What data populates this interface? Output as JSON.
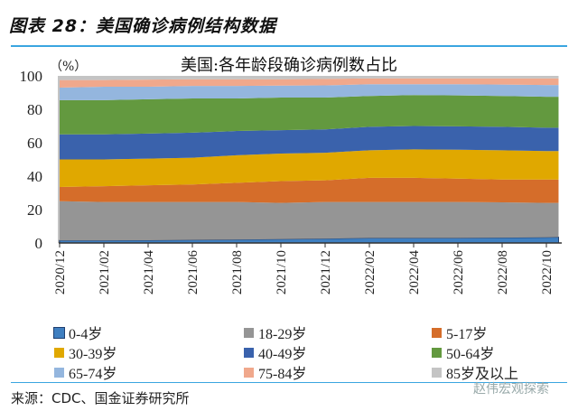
{
  "figure_title": "图表 28：美国确诊病例结构数据",
  "source": "来源：CDC、国金证券研究所",
  "watermark": "赵伟宏观探索",
  "chart_data": {
    "type": "area",
    "stacked": true,
    "title": "美国:各年龄段确诊病例数占比",
    "ylabel": "（%）",
    "ylim": [
      0,
      100
    ],
    "yticks": [
      0,
      20,
      40,
      60,
      80,
      100
    ],
    "x": [
      "2020/12",
      "2021/02",
      "2021/04",
      "2021/06",
      "2021/08",
      "2021/10",
      "2021/12",
      "2022/02",
      "2022/04",
      "2022/06",
      "2022/08",
      "2022/10",
      "2022/11"
    ],
    "xtick_labels": [
      "2020/12",
      "2021/02",
      "2021/04",
      "2021/06",
      "2021/08",
      "2021/10",
      "2021/12",
      "2022/02",
      "2022/04",
      "2022/06",
      "2022/08",
      "2022/10"
    ],
    "legend_position": "bottom",
    "series": [
      {
        "name": "0-4岁",
        "color": "#3f7fc0",
        "values": [
          1.5,
          1.5,
          1.6,
          1.8,
          2,
          2.3,
          2.6,
          3,
          3,
          3,
          3.2,
          3.4,
          3.5
        ]
      },
      {
        "name": "18-29岁",
        "color": "#959595",
        "values": [
          23.5,
          23,
          22.9,
          22.7,
          22.5,
          21.7,
          21.9,
          21.5,
          21.5,
          21.5,
          21.1,
          20.6,
          20.5
        ]
      },
      {
        "name": "5-17岁",
        "color": "#d56d2a",
        "values": [
          8.5,
          9.5,
          10,
          10.5,
          11.5,
          13,
          13,
          14.5,
          14.5,
          14,
          13.7,
          14,
          14
        ]
      },
      {
        "name": "30-39岁",
        "color": "#e0a800",
        "values": [
          16.5,
          16,
          16,
          16,
          16.5,
          16.5,
          16.5,
          16.5,
          17,
          17.3,
          17.5,
          17,
          17
        ]
      },
      {
        "name": "40-49岁",
        "color": "#3a62ac",
        "values": [
          15,
          15,
          15,
          15,
          14.5,
          14,
          14,
          14,
          14,
          14,
          14,
          14,
          14
        ]
      },
      {
        "name": "50-64岁",
        "color": "#63993f",
        "values": [
          20.5,
          20.5,
          20.5,
          20.5,
          19.5,
          19.5,
          19,
          18.5,
          18.5,
          18.5,
          18.5,
          18.5,
          18.5
        ]
      },
      {
        "name": "65-74岁",
        "color": "#94b6de",
        "values": [
          7.5,
          8,
          7.5,
          7.5,
          7.5,
          7.2,
          7.3,
          7,
          6.5,
          6.7,
          6.8,
          7,
          7
        ]
      },
      {
        "name": "75-84岁",
        "color": "#f0a88c",
        "values": [
          4.5,
          4,
          4.3,
          4,
          4,
          3.8,
          3.9,
          3.5,
          3.5,
          3.5,
          3.7,
          4,
          4
        ]
      },
      {
        "name": "85岁及以上",
        "color": "#c4c4c4",
        "values": [
          2.5,
          2.5,
          2.2,
          2,
          2,
          2,
          1.8,
          1.5,
          1.5,
          1.5,
          1.5,
          1.5,
          1.5
        ]
      }
    ],
    "legend_order": [
      "0-4岁",
      "18-29岁",
      "5-17岁",
      "30-39岁",
      "40-49岁",
      "50-64岁",
      "65-74岁",
      "75-84岁",
      "85岁及以上"
    ]
  }
}
